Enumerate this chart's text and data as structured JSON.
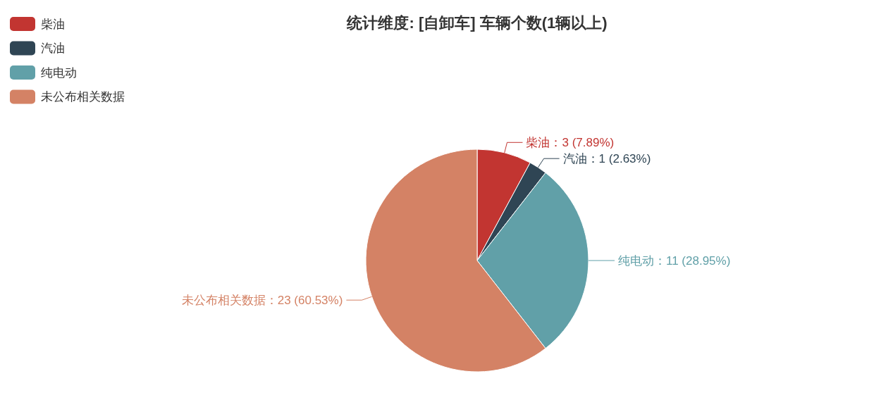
{
  "chart_data": {
    "type": "pie",
    "title": "统计维度: [自卸车] 车辆个数(1辆以上)",
    "categories": [
      "柴油",
      "汽油",
      "纯电动",
      "未公布相关数据"
    ],
    "values": [
      3,
      1,
      11,
      23
    ],
    "colors": [
      "#c23531",
      "#2f4554",
      "#61a0a8",
      "#d48265"
    ],
    "value_labels": [
      "柴油：3 (7.89%)",
      "汽油：1 (2.63%)",
      "纯电动：11 (28.95%)",
      "未公布相关数据：23 (60.53%)"
    ],
    "legend": "top left"
  }
}
